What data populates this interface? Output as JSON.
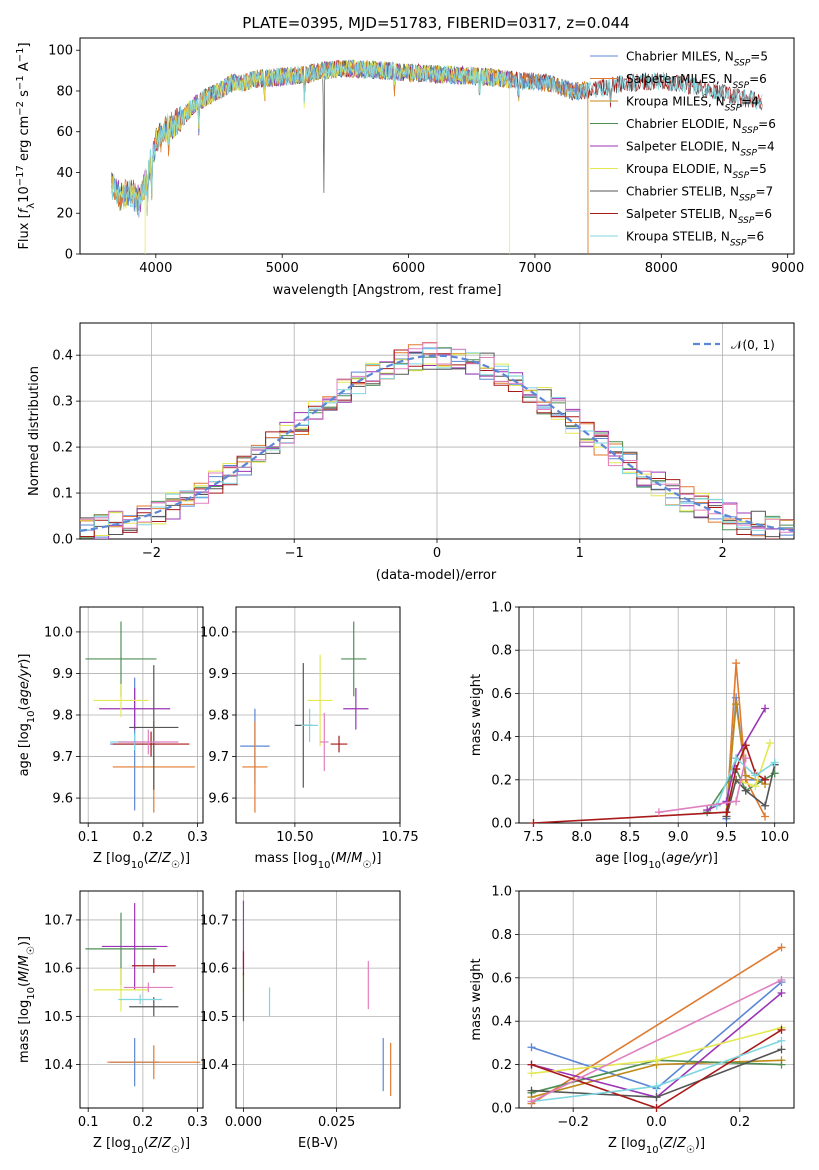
{
  "figure_title": "PLATE=0395, MJD=51783, FIBERID=0317, z=0.044",
  "colors": {
    "Chabrier MILES": "#5b87d6",
    "Salpeter MILES": "#e07a2e",
    "Kroupa MILES": "#c08a1a",
    "Chabrier ELODIE": "#4f8f55",
    "Salpeter ELODIE": "#9b34b5",
    "Kroupa ELODIE": "#e4e852",
    "Chabrier STELIB": "#555555",
    "Salpeter STELIB": "#a81a1a",
    "Kroupa STELIB": "#7ed6e0",
    "extra": "#e080c0"
  },
  "chart_data": [
    {
      "id": "spectrum",
      "type": "line",
      "xlabel": "wavelength [Angstrom, rest frame]",
      "ylabel": "Flux [f_λ 10^-17 erg cm^-2 s^-1 A^-1]",
      "xlim": [
        3400,
        9050
      ],
      "ylim": [
        0,
        106
      ],
      "xticks": [
        4000,
        5000,
        6000,
        7000,
        8000,
        9000
      ],
      "yticks": [
        0,
        20,
        40,
        60,
        80,
        100
      ],
      "grid": false,
      "legend_placement": "top-right",
      "anchors_x": [
        3650,
        3720,
        3800,
        3870,
        3920,
        3960,
        4000,
        4100,
        4200,
        4300,
        4400,
        4500,
        4600,
        4700,
        4800,
        5000,
        5200,
        5300,
        5500,
        5800,
        6000,
        6300,
        6600,
        6900,
        7100,
        7300,
        7500,
        7700,
        8000,
        8300,
        8600,
        8800
      ],
      "anchors_y": [
        35,
        28,
        30,
        26,
        35,
        45,
        55,
        62,
        66,
        73,
        77,
        80,
        84,
        84,
        86,
        87,
        88,
        90,
        91,
        90,
        89,
        88,
        87,
        85,
        84,
        80,
        81,
        84,
        85,
        82,
        77,
        75
      ],
      "series": [
        {
          "name": "Chabrier MILES",
          "n_ssp": "5",
          "xmax": 7420,
          "drop_at": null
        },
        {
          "name": "Salpeter MILES",
          "n_ssp": "6",
          "xmax": 7420,
          "drop_at": 7420
        },
        {
          "name": "Kroupa MILES",
          "n_ssp": "4",
          "xmax": 7420,
          "drop_at": 7420
        },
        {
          "name": "Chabrier ELODIE",
          "n_ssp": "6",
          "xmax": 6800,
          "drop_at": null
        },
        {
          "name": "Salpeter ELODIE",
          "n_ssp": "4",
          "xmax": 6800,
          "drop_at": null
        },
        {
          "name": "Kroupa ELODIE",
          "n_ssp": "5",
          "xmax": 6800,
          "drop_at": 6800
        },
        {
          "name": "Chabrier STELIB",
          "n_ssp": "7",
          "xmax": 8800,
          "drop_at": null
        },
        {
          "name": "Salpeter STELIB",
          "n_ssp": "6",
          "xmax": 8800,
          "drop_at": null
        },
        {
          "name": "Kroupa STELIB",
          "n_ssp": "6",
          "xmax": 8800,
          "drop_at": null
        }
      ]
    },
    {
      "id": "residuals",
      "type": "line",
      "xlabel": "(data-model)/error",
      "ylabel": "Normed distribution",
      "xlim": [
        -2.5,
        2.5
      ],
      "ylim": [
        0,
        0.47
      ],
      "xticks": [
        -2,
        -1,
        0,
        1,
        2
      ],
      "yticks": [
        0.0,
        0.1,
        0.2,
        0.3,
        0.4
      ],
      "grid": true,
      "legend_placement": "top-right",
      "legend": "𝒩(0, 1)",
      "bin_width": 0.1,
      "n_histograms": 9
    },
    {
      "id": "age-vs-Z",
      "type": "scatter",
      "xlabel": "Z [log10(Z/Z☉)]",
      "ylabel": "age [log10(age/yr)]",
      "xlim": [
        0.085,
        0.31
      ],
      "ylim": [
        9.54,
        10.06
      ],
      "xticks": [
        0.1,
        0.2,
        0.3
      ],
      "yticks": [
        9.6,
        9.7,
        9.8,
        9.9,
        10.0
      ],
      "grid": true,
      "points": [
        {
          "series": "Chabrier MILES",
          "x": 0.185,
          "y": 9.73,
          "xerr": 0.045,
          "yerr": 0.16
        },
        {
          "series": "Salpeter MILES",
          "x": 0.22,
          "y": 9.675,
          "xerr": 0.075,
          "yerr": 0.11
        },
        {
          "series": "Chabrier ELODIE",
          "x": 0.16,
          "y": 9.935,
          "xerr": 0.065,
          "yerr": 0.09
        },
        {
          "series": "Salpeter ELODIE",
          "x": 0.185,
          "y": 9.815,
          "xerr": 0.065,
          "yerr": 0.05
        },
        {
          "series": "Kroupa ELODIE",
          "x": 0.16,
          "y": 9.835,
          "xerr": 0.05,
          "yerr": 0.04
        },
        {
          "series": "Chabrier STELIB",
          "x": 0.22,
          "y": 9.77,
          "xerr": 0.045,
          "yerr": 0.15
        },
        {
          "series": "Salpeter STELIB",
          "x": 0.215,
          "y": 9.73,
          "xerr": 0.07,
          "yerr": 0.03
        },
        {
          "series": "Kroupa STELIB",
          "x": 0.185,
          "y": 9.735,
          "xerr": 0.045,
          "yerr": 0.02
        },
        {
          "series": "extra",
          "x": 0.21,
          "y": 9.735,
          "xerr": 0.055,
          "yerr": 0.03
        }
      ]
    },
    {
      "id": "age-vs-mass",
      "type": "scatter",
      "xlabel": "mass [log10(M/M☉)]",
      "ylabel": "",
      "xlim": [
        10.36,
        10.75
      ],
      "ylim": [
        9.54,
        10.06
      ],
      "xticks": [
        10.5,
        10.75
      ],
      "yticks": [
        9.6,
        9.7,
        9.8,
        9.9,
        10.0
      ],
      "grid": true,
      "points": [
        {
          "series": "Chabrier MILES",
          "x": 10.405,
          "y": 9.725,
          "xerr": 0.035,
          "yerr": 0.09
        },
        {
          "series": "Salpeter MILES",
          "x": 10.405,
          "y": 9.675,
          "xerr": 0.03,
          "yerr": 0.11
        },
        {
          "series": "Chabrier ELODIE",
          "x": 10.64,
          "y": 9.935,
          "xerr": 0.03,
          "yerr": 0.09
        },
        {
          "series": "Salpeter ELODIE",
          "x": 10.645,
          "y": 9.815,
          "xerr": 0.03,
          "yerr": 0.05
        },
        {
          "series": "Kroupa ELODIE",
          "x": 10.56,
          "y": 9.835,
          "xerr": 0.03,
          "yerr": 0.11
        },
        {
          "series": "Chabrier STELIB",
          "x": 10.52,
          "y": 9.775,
          "xerr": 0.02,
          "yerr": 0.15
        },
        {
          "series": "Salpeter STELIB",
          "x": 10.605,
          "y": 9.73,
          "xerr": 0.02,
          "yerr": 0.02
        },
        {
          "series": "Kroupa STELIB",
          "x": 10.535,
          "y": 9.775,
          "xerr": 0.02,
          "yerr": 0.04
        },
        {
          "series": "extra",
          "x": 10.57,
          "y": 9.735,
          "xerr": 0.01,
          "yerr": 0.07
        }
      ]
    },
    {
      "id": "weight-vs-age",
      "type": "line",
      "xlabel": "age [log10(age/yr)]",
      "ylabel": "mass weight",
      "xlim": [
        7.35,
        10.2
      ],
      "ylim": [
        0,
        1.0
      ],
      "xticks": [
        7.5,
        8.0,
        8.5,
        9.0,
        9.5,
        10.0
      ],
      "yticks": [
        0.0,
        0.2,
        0.4,
        0.6,
        0.8,
        1.0
      ],
      "grid": true,
      "series": [
        {
          "name": "Chabrier MILES",
          "x": [
            9.5,
            9.6,
            9.7,
            9.9
          ],
          "y": [
            0.02,
            0.58,
            0.2,
            0.2
          ]
        },
        {
          "name": "Salpeter MILES",
          "x": [
            9.5,
            9.6,
            9.7,
            9.9
          ],
          "y": [
            0.03,
            0.74,
            0.2,
            0.03
          ]
        },
        {
          "name": "Kroupa MILES",
          "x": [
            9.5,
            9.6,
            9.7,
            9.9
          ],
          "y": [
            0.05,
            0.55,
            0.22,
            0.18
          ]
        },
        {
          "name": "Chabrier ELODIE",
          "x": [
            9.3,
            9.6,
            9.7,
            10.0
          ],
          "y": [
            0.05,
            0.25,
            0.15,
            0.23
          ]
        },
        {
          "name": "Salpeter ELODIE",
          "x": [
            9.3,
            9.5,
            9.6,
            9.9
          ],
          "y": [
            0.06,
            0.1,
            0.3,
            0.53
          ]
        },
        {
          "name": "Kroupa ELODIE",
          "x": [
            9.5,
            9.6,
            9.8,
            9.95
          ],
          "y": [
            0.05,
            0.2,
            0.17,
            0.37
          ]
        },
        {
          "name": "Chabrier STELIB",
          "x": [
            9.5,
            9.6,
            9.7,
            9.9,
            10.0
          ],
          "y": [
            0.03,
            0.2,
            0.15,
            0.08,
            0.27
          ]
        },
        {
          "name": "Salpeter STELIB",
          "x": [
            7.5,
            9.5,
            9.6,
            9.7,
            9.8,
            9.9
          ],
          "y": [
            0.0,
            0.05,
            0.25,
            0.36,
            0.23,
            0.2
          ]
        },
        {
          "name": "Kroupa STELIB",
          "x": [
            9.4,
            9.6,
            9.8,
            10.0
          ],
          "y": [
            0.08,
            0.3,
            0.22,
            0.28
          ]
        },
        {
          "name": "extra",
          "x": [
            8.8,
            9.6,
            9.7
          ],
          "y": [
            0.05,
            0.1,
            0.3
          ]
        }
      ]
    },
    {
      "id": "mass-vs-Z",
      "type": "scatter",
      "xlabel": "Z [log10(Z/Z☉)]",
      "ylabel": "mass [log10(M/M☉)]",
      "xlim": [
        0.085,
        0.31
      ],
      "ylim": [
        10.31,
        10.76
      ],
      "xticks": [
        0.1,
        0.2,
        0.3
      ],
      "yticks": [
        10.4,
        10.5,
        10.6,
        10.7
      ],
      "grid": true,
      "points": [
        {
          "series": "Chabrier MILES",
          "x": 0.185,
          "y": 10.405,
          "xerr": 0.045,
          "yerr": 0.05
        },
        {
          "series": "Salpeter MILES",
          "x": 0.22,
          "y": 10.405,
          "xerr": 0.085,
          "yerr": 0.035
        },
        {
          "series": "Chabrier ELODIE",
          "x": 0.16,
          "y": 10.64,
          "xerr": 0.065,
          "yerr": 0.075
        },
        {
          "series": "Salpeter ELODIE",
          "x": 0.185,
          "y": 10.645,
          "xerr": 0.06,
          "yerr": 0.09
        },
        {
          "series": "Kroupa ELODIE",
          "x": 0.16,
          "y": 10.555,
          "xerr": 0.05,
          "yerr": 0.045
        },
        {
          "series": "Chabrier STELIB",
          "x": 0.22,
          "y": 10.52,
          "xerr": 0.045,
          "yerr": 0.02
        },
        {
          "series": "Salpeter STELIB",
          "x": 0.22,
          "y": 10.605,
          "xerr": 0.04,
          "yerr": 0.015
        },
        {
          "series": "Kroupa STELIB",
          "x": 0.195,
          "y": 10.535,
          "xerr": 0.04,
          "yerr": 0.01
        },
        {
          "series": "extra",
          "x": 0.21,
          "y": 10.56,
          "xerr": 0.045,
          "yerr": 0.01
        }
      ]
    },
    {
      "id": "mass-vs-EBV",
      "type": "scatter",
      "xlabel": "E(B-V)",
      "ylabel": "",
      "xlim": [
        -0.002,
        0.042
      ],
      "ylim": [
        10.31,
        10.76
      ],
      "xticks": [
        0.0,
        0.025
      ],
      "xtick_labels": [
        "0.000",
        "0.025"
      ],
      "yticks": [
        10.4,
        10.5,
        10.6,
        10.7
      ],
      "grid": true,
      "points": [
        {
          "series": "Chabrier MILES",
          "x": 0.0375,
          "y": 10.4,
          "yerr": 0.055
        },
        {
          "series": "Salpeter MILES",
          "x": 0.0395,
          "y": 10.39,
          "yerr": 0.055
        },
        {
          "series": "Salpeter ELODIE",
          "x": 0.0,
          "y": 10.67,
          "yerr": 0.07
        },
        {
          "series": "Kroupa ELODIE",
          "x": 0.0,
          "y": 10.57,
          "yerr": 0.02
        },
        {
          "series": "Chabrier STELIB",
          "x": 0.0,
          "y": 10.54,
          "yerr": 0.05
        },
        {
          "series": "Salpeter STELIB",
          "x": 0.0,
          "y": 10.61,
          "yerr": 0.025
        },
        {
          "series": "Kroupa STELIB",
          "x": 0.007,
          "y": 10.53,
          "yerr": 0.03
        },
        {
          "series": "extra",
          "x": 0.0335,
          "y": 10.565,
          "yerr": 0.05
        }
      ]
    },
    {
      "id": "weight-vs-Z",
      "type": "line",
      "xlabel": "Z [log10(Z/Z☉)]",
      "ylabel": "mass weight",
      "xlim": [
        -0.33,
        0.33
      ],
      "ylim": [
        0,
        1.0
      ],
      "xticks": [
        -0.2,
        0.0,
        0.2
      ],
      "yticks": [
        0.0,
        0.2,
        0.4,
        0.6,
        0.8,
        1.0
      ],
      "grid": true,
      "series": [
        {
          "name": "Chabrier MILES",
          "x": [
            -0.3,
            0.0,
            0.3
          ],
          "y": [
            0.28,
            0.09,
            0.58
          ]
        },
        {
          "name": "Salpeter MILES",
          "x": [
            -0.3,
            0.3
          ],
          "y": [
            0.02,
            0.74
          ]
        },
        {
          "name": "Kroupa MILES",
          "x": [
            -0.3,
            0.0,
            0.3
          ],
          "y": [
            0.05,
            0.2,
            0.22
          ]
        },
        {
          "name": "Chabrier ELODIE",
          "x": [
            -0.3,
            0.0,
            0.3
          ],
          "y": [
            0.07,
            0.22,
            0.2
          ]
        },
        {
          "name": "Salpeter ELODIE",
          "x": [
            -0.3,
            0.0,
            0.3
          ],
          "y": [
            0.2,
            0.05,
            0.53
          ]
        },
        {
          "name": "Kroupa ELODIE",
          "x": [
            -0.3,
            0.0,
            0.3
          ],
          "y": [
            0.16,
            0.22,
            0.37
          ]
        },
        {
          "name": "Chabrier STELIB",
          "x": [
            -0.3,
            0.0,
            0.3
          ],
          "y": [
            0.08,
            0.05,
            0.27
          ]
        },
        {
          "name": "Salpeter STELIB",
          "x": [
            -0.3,
            0.0,
            0.3
          ],
          "y": [
            0.2,
            0.0,
            0.36
          ]
        },
        {
          "name": "Kroupa STELIB",
          "x": [
            -0.3,
            0.0,
            0.3
          ],
          "y": [
            0.03,
            0.1,
            0.31
          ]
        },
        {
          "name": "extra",
          "x": [
            -0.3,
            0.3
          ],
          "y": [
            0.03,
            0.59
          ]
        }
      ]
    }
  ]
}
